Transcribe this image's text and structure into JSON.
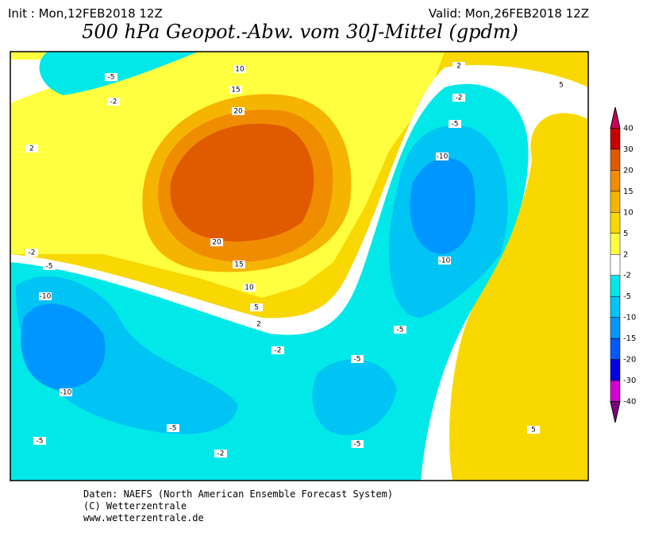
{
  "header": {
    "init": "Init : Mon,12FEB2018 12Z",
    "valid": "Valid: Mon,26FEB2018 12Z",
    "title": "500 hPa Geopot.-Abw. vom 30J-Mittel (gpdm)"
  },
  "legend": {
    "labels": [
      40,
      30,
      20,
      15,
      10,
      5,
      2,
      -2,
      -5,
      -10,
      -15,
      -20,
      -30,
      -40
    ],
    "colors": [
      "#c8005a",
      "#c40000",
      "#e05a00",
      "#f08c00",
      "#f5b400",
      "#f8d800",
      "#ffff40",
      "#ffffff",
      "#00e8e8",
      "#00c4f4",
      "#0096ff",
      "#005aff",
      "#0000e0",
      "#d000d0",
      "#800080"
    ]
  },
  "contour_labels": [
    -5,
    -2,
    2,
    10,
    15,
    20,
    2,
    5,
    -2,
    -5,
    -10,
    -10,
    20,
    15,
    10,
    5,
    2,
    -2,
    -5,
    -10,
    -2,
    -5,
    -5,
    -10,
    -5,
    -5,
    -5,
    -2,
    5
  ],
  "footer": [
    "Daten: NAEFS (North American Ensemble Forecast System)",
    "(C) Wetterzentrale",
    "www.wetterzentrale.de"
  ]
}
